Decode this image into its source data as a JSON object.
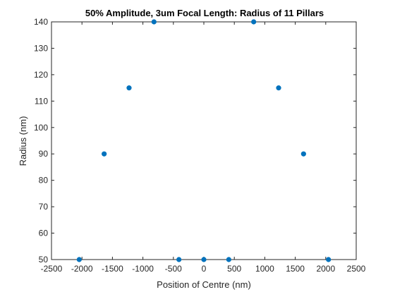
{
  "chart_data": {
    "type": "scatter",
    "title": "50% Amplitude, 3um Focal Length: Radius of 11 Pillars",
    "xlabel": "Position of Centre (nm)",
    "ylabel": "Radius (nm)",
    "xlim": [
      -2500,
      2500
    ],
    "ylim": [
      50,
      140
    ],
    "xticks": [
      -2500,
      -2000,
      -1500,
      -1000,
      -500,
      0,
      500,
      1000,
      1500,
      2000,
      2500
    ],
    "yticks": [
      50,
      60,
      70,
      80,
      90,
      100,
      110,
      120,
      130,
      140
    ],
    "grid": false,
    "marker_color": "#0072BD",
    "x": [
      -2045,
      -1636,
      -1227,
      -818,
      -409,
      0,
      409,
      818,
      1227,
      1636,
      2045
    ],
    "y": [
      50,
      90,
      115,
      140,
      50,
      50,
      50,
      140,
      115,
      90,
      50
    ]
  }
}
